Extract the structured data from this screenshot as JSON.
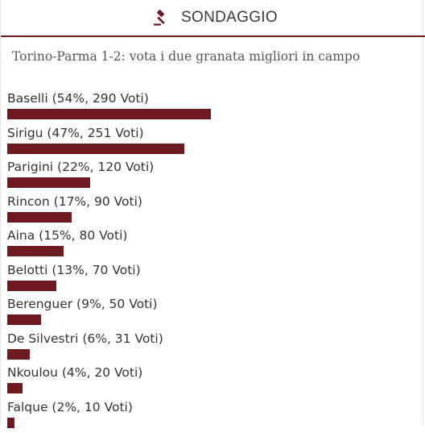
{
  "header": {
    "title": "SONDAGGIO",
    "icon": "gavel-icon",
    "accent_color": "#6e1a1f"
  },
  "poll": {
    "question": "Torino-Parma 1-2: vota i due granata migliori in campo",
    "bar_color": "#6e1a1f",
    "options": [
      {
        "label": "Baselli (54%, 290 Voti)",
        "percent": 54
      },
      {
        "label": "Sirigu (47%, 251 Voti)",
        "percent": 47
      },
      {
        "label": "Parigini (22%, 120 Voti)",
        "percent": 22
      },
      {
        "label": "Rincon (17%, 90 Voti)",
        "percent": 17
      },
      {
        "label": "Aina (15%, 80 Voti)",
        "percent": 15
      },
      {
        "label": "Belotti (13%, 70 Voti)",
        "percent": 13
      },
      {
        "label": "Berenguer (9%, 50 Voti)",
        "percent": 9
      },
      {
        "label": "De Silvestri (6%, 31 Voti)",
        "percent": 6
      },
      {
        "label": "Nkoulou (4%, 20 Voti)",
        "percent": 4
      },
      {
        "label": "Falque (2%, 10 Voti)",
        "percent": 2
      }
    ]
  }
}
